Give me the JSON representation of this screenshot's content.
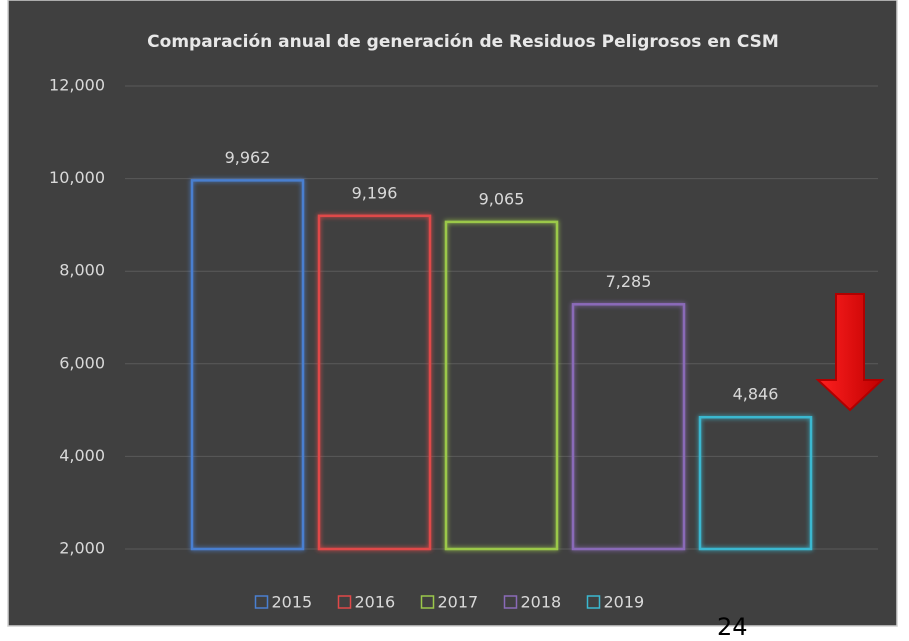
{
  "chart_data": {
    "type": "bar",
    "title": "Comparación anual de generación de Residuos Peligrosos en CSM",
    "series": [
      {
        "name": "2015",
        "color": "#4a7fd0",
        "values": [
          9962
        ],
        "value_labels": [
          "9,962"
        ]
      },
      {
        "name": "2016",
        "color": "#e04848",
        "values": [
          9196
        ],
        "value_labels": [
          "9,196"
        ]
      },
      {
        "name": "2017",
        "color": "#9bc84a",
        "values": [
          9065
        ],
        "value_labels": [
          "9,065"
        ]
      },
      {
        "name": "2018",
        "color": "#8a6ab8",
        "values": [
          7285
        ],
        "value_labels": [
          "7,285"
        ]
      },
      {
        "name": "2019",
        "color": "#3ab8d0",
        "values": [
          4846
        ],
        "value_labels": [
          "4,846"
        ]
      }
    ],
    "ylim": [
      2000,
      12000
    ],
    "yticks": [
      {
        "value": 2000,
        "label": "2,000"
      },
      {
        "value": 4000,
        "label": "4,000"
      },
      {
        "value": 6000,
        "label": "6,000"
      },
      {
        "value": 8000,
        "label": "8,000"
      },
      {
        "value": 10000,
        "label": "10,000"
      },
      {
        "value": 12000,
        "label": "12,000"
      }
    ],
    "grid": true,
    "legend": "bottom"
  },
  "page_number": "24"
}
